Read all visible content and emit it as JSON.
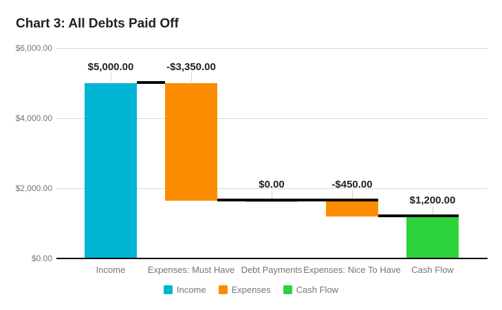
{
  "title": "Chart 3: All Debts Paid Off",
  "colors": {
    "background": "#ffffff",
    "title_text": "#212121",
    "axis_text": "#757575",
    "data_label_text": "#212121",
    "gridline": "#d8d8d8",
    "axis_line": "#000000",
    "leader_line": "#d0d0d0",
    "connector": "#000000",
    "zero_bar": "#b7b7b7",
    "income": "#00b5d3",
    "expenses": "#fc8c00",
    "cash_flow": "#2ed33c"
  },
  "chart_data": {
    "type": "waterfall",
    "title": "Chart 3: All Debts Paid Off",
    "categories": [
      "Income",
      "Expenses: Must Have",
      "Debt Payments",
      "Expenses: Nice To Have",
      "Cash Flow"
    ],
    "values": [
      5000,
      -3350,
      0,
      -450,
      1200
    ],
    "value_labels": [
      "$5,000.00",
      "-$3,350.00",
      "$0.00",
      "-$450.00",
      "$1,200.00"
    ],
    "bar_series": [
      "Income",
      "Expenses",
      "Expenses",
      "Expenses",
      "Cash Flow"
    ],
    "running_start": [
      0,
      5000,
      1650,
      1650,
      0
    ],
    "running_end": [
      5000,
      1650,
      1650,
      1200,
      1200
    ],
    "ylim": [
      0,
      6000
    ],
    "y_ticks": [
      {
        "value": 0,
        "label": "$0.00"
      },
      {
        "value": 2000,
        "label": "$2,000.00"
      },
      {
        "value": 4000,
        "label": "$4,000.00"
      },
      {
        "value": 6000,
        "label": "$6,000.00"
      }
    ],
    "grid": true,
    "series_colors": {
      "Income": "#00b5d3",
      "Expenses": "#fc8c00",
      "Cash Flow": "#2ed33c"
    },
    "legend": {
      "position": "bottom",
      "items": [
        {
          "label": "Income",
          "color": "#00b5d3"
        },
        {
          "label": "Expenses",
          "color": "#fc8c00"
        },
        {
          "label": "Cash Flow",
          "color": "#2ed33c"
        }
      ]
    }
  }
}
